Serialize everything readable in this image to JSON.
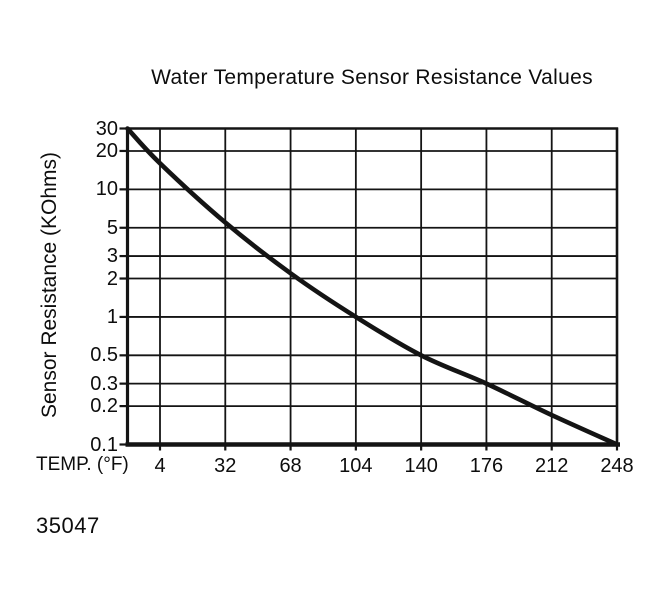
{
  "figure_number": "35047",
  "chart_data": {
    "type": "line",
    "title": "Water Temperature Sensor Resistance Values",
    "xlabel": "TEMP. (°F)",
    "ylabel": "Sensor Resistance (KOhms)",
    "x_ticks": [
      4,
      32,
      68,
      104,
      140,
      176,
      212,
      248
    ],
    "y_ticks": [
      30,
      20,
      10,
      5,
      3,
      2,
      1,
      0.5,
      0.3,
      0.2,
      0.1
    ],
    "y_scale": "log",
    "ylim": [
      0.1,
      30
    ],
    "grid": true,
    "legend": false,
    "line_color": "#141414",
    "background": "#ffffff",
    "series": [
      {
        "name": "water-temp-sensor-resistance",
        "points": [
          {
            "temp_f": -15,
            "kohms": 30
          },
          {
            "temp_f": 4,
            "kohms": 16
          },
          {
            "temp_f": 32,
            "kohms": 5.5
          },
          {
            "temp_f": 68,
            "kohms": 2.2
          },
          {
            "temp_f": 104,
            "kohms": 1.0
          },
          {
            "temp_f": 140,
            "kohms": 0.5
          },
          {
            "temp_f": 176,
            "kohms": 0.3
          },
          {
            "temp_f": 212,
            "kohms": 0.17
          },
          {
            "temp_f": 248,
            "kohms": 0.1
          }
        ]
      }
    ]
  }
}
